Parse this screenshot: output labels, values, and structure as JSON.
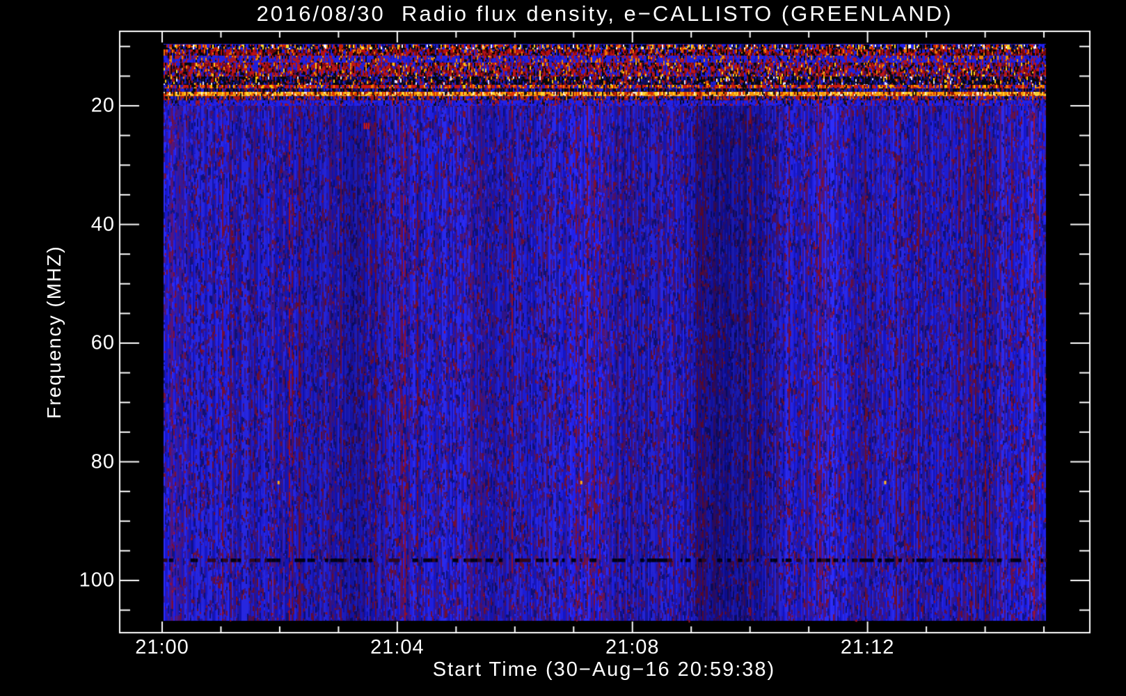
{
  "window": {
    "background": "#000000"
  },
  "chart_data": {
    "type": "heatmap",
    "title": "2016/08/30  Radio flux density, e−CALLISTO (GREENLAND)",
    "xlabel": "Start Time (30−Aug−16 20:59:38)",
    "ylabel": "Frequency (MHZ)",
    "axis_color": "#ffffff",
    "text_color": "#ffffff",
    "legend": "none",
    "grid": false,
    "x_tick_labels": [
      "21:00",
      "21:04",
      "21:08",
      "21:12"
    ],
    "x_major_minutes": [
      0,
      4,
      8,
      12
    ],
    "x_minor_step_minutes": 1,
    "x_range_minutes": [
      0,
      15
    ],
    "y_tick_labels": [
      "20",
      "40",
      "60",
      "80",
      "100"
    ],
    "y_major_mhz": [
      20,
      40,
      60,
      80,
      100
    ],
    "y_minor_step_mhz": 5,
    "y_minor_range_mhz": [
      10,
      105
    ],
    "freq_range_mhz": [
      9.6,
      107
    ],
    "body_base_palette": [
      [
        "#2d2df8",
        26
      ],
      [
        "#2121ea",
        26
      ],
      [
        "#1717cf",
        16
      ],
      [
        "#1b1bb8",
        10
      ],
      [
        "#3d1b9e",
        10
      ],
      [
        "#55157a",
        6
      ],
      [
        "#7d1038",
        4
      ],
      [
        "#aa1228",
        2
      ]
    ],
    "body_overlay_palette": [
      [
        "#3c1a9a",
        30
      ],
      [
        "#55156e",
        18
      ],
      [
        "#141480",
        22
      ],
      [
        "#7a1032",
        12
      ],
      [
        "#2a2af5",
        18
      ]
    ],
    "body_speckle_color": "#a51228",
    "rfi_bands": [
      {
        "f0": 9.68,
        "f1": 10.5,
        "palette": [
          [
            "#02020a",
            30
          ],
          [
            "#101060",
            15
          ],
          [
            "#2222ee",
            15
          ],
          [
            "#cc2200",
            20
          ],
          [
            "#ff8800",
            8
          ],
          [
            "#ffdd22",
            7
          ],
          [
            "#ffffff",
            5
          ]
        ]
      },
      {
        "f0": 10.5,
        "f1": 11.55,
        "palette": [
          [
            "#bb1111",
            30
          ],
          [
            "#700808",
            20
          ],
          [
            "#050505",
            25
          ],
          [
            "#2020dd",
            15
          ],
          [
            "#ee7700",
            10
          ]
        ]
      },
      {
        "f0": 11.55,
        "f1": 12.73,
        "palette": [
          [
            "#2222e8",
            45
          ],
          [
            "#1818c0",
            15
          ],
          [
            "#b01520",
            22
          ],
          [
            "#0a0a14",
            10
          ],
          [
            "#ee8800",
            8
          ]
        ]
      },
      {
        "f0": 12.73,
        "f1": 15.07,
        "palette": [
          [
            "#c01515",
            28
          ],
          [
            "#7a0a0a",
            18
          ],
          [
            "#08080c",
            16
          ],
          [
            "#2020dd",
            22
          ],
          [
            "#500f60",
            6
          ],
          [
            "#f08800",
            7
          ],
          [
            "#ffd020",
            3
          ]
        ]
      },
      {
        "f0": 15.07,
        "f1": 16.48,
        "palette": [
          [
            "#060608",
            38
          ],
          [
            "#0e0e5a",
            22
          ],
          [
            "#a01010",
            16
          ],
          [
            "#1d1dcc",
            14
          ],
          [
            "#ffcc00",
            4
          ],
          [
            "#e8e8ff",
            3
          ],
          [
            "#ee7700",
            3
          ]
        ]
      },
      {
        "f0": 16.48,
        "f1": 17.07,
        "palette": [
          [
            "#cc1a10",
            38
          ],
          [
            "#ff7700",
            18
          ],
          [
            "#0a0a0a",
            14
          ],
          [
            "#1d1dd0",
            18
          ],
          [
            "#ffc800",
            8
          ],
          [
            "#801010",
            4
          ]
        ]
      },
      {
        "f0": 17.07,
        "f1": 17.65,
        "palette": [
          [
            "#10105e",
            32
          ],
          [
            "#050508",
            28
          ],
          [
            "#2020d8",
            24
          ],
          [
            "#901018",
            12
          ],
          [
            "#401060",
            4
          ]
        ]
      },
      {
        "f0": 17.65,
        "f1": 18.4,
        "palette": [
          [
            "#ff9900",
            30
          ],
          [
            "#ffd633",
            22
          ],
          [
            "#dd3300",
            24
          ],
          [
            "#881100",
            8
          ],
          [
            "#111111",
            8
          ],
          [
            "#fff2cc",
            8
          ]
        ]
      },
      {
        "f0": 18.4,
        "f1": 19.1,
        "palette": [
          [
            "#aa1515",
            34
          ],
          [
            "#12126a",
            22
          ],
          [
            "#070710",
            18
          ],
          [
            "#2222dd",
            20
          ],
          [
            "#dd6600",
            6
          ]
        ]
      },
      {
        "f0": 19.1,
        "f1": 20.0,
        "palette": [
          [
            "#2222e8",
            52
          ],
          [
            "#1616b8",
            18
          ],
          [
            "#a01525",
            14
          ],
          [
            "#0c0c18",
            8
          ],
          [
            "#3a1170",
            8
          ]
        ]
      }
    ],
    "dark_dashed_row": {
      "f0": 96.3,
      "f1": 96.9,
      "dash_color": "#000014",
      "alt_color": "#30081c",
      "density": 0.55
    },
    "features": [
      {
        "name": "calibration-dot",
        "t_min": 1.98,
        "f_mhz": 83.5,
        "color": "#ffaa11",
        "w": 3,
        "h": 5
      },
      {
        "name": "calibration-dot",
        "t_min": 7.13,
        "f_mhz": 83.5,
        "color": "#ffaa11",
        "w": 3,
        "h": 5
      },
      {
        "name": "calibration-dot",
        "t_min": 12.3,
        "f_mhz": 83.5,
        "color": "#ffb820",
        "w": 3,
        "h": 5
      },
      {
        "name": "rfi-blob",
        "t_min": 3.43,
        "f_mhz": 23.4,
        "color": "#e01800",
        "w": 8,
        "h": 9
      }
    ]
  }
}
